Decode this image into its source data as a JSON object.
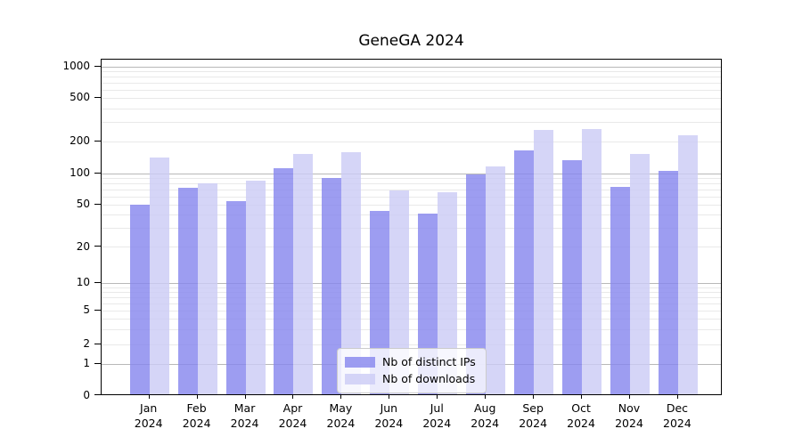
{
  "chart_data": {
    "type": "bar",
    "title": "GeneGA 2024",
    "categories": [
      "Jan",
      "Feb",
      "Mar",
      "Apr",
      "May",
      "Jun",
      "Jul",
      "Aug",
      "Sep",
      "Oct",
      "Nov",
      "Dec"
    ],
    "category_year": "2024",
    "series": [
      {
        "name": "Nb of distinct IPs",
        "color": "#8888ee",
        "values": [
          48,
          70,
          52,
          108,
          88,
          42,
          40,
          94,
          160,
          130,
          72,
          103
        ]
      },
      {
        "name": "Nb of downloads",
        "color": "#ccccf5",
        "values": [
          138,
          78,
          83,
          147,
          154,
          67,
          64,
          114,
          245,
          250,
          148,
          220
        ]
      }
    ],
    "yscale": "symlog",
    "yticks": [
      0,
      1,
      2,
      5,
      10,
      20,
      50,
      100,
      200,
      500,
      1000
    ],
    "minor_gridlines": [
      2,
      3,
      4,
      5,
      6,
      7,
      8,
      9,
      20,
      30,
      40,
      50,
      60,
      70,
      80,
      90,
      200,
      300,
      400,
      500,
      600,
      700,
      800,
      900
    ],
    "major_gridlines": [
      1,
      10,
      100,
      1000
    ],
    "ylim": [
      0,
      1166
    ],
    "grid": "both",
    "legend_position": "lower center",
    "colors": {
      "major_grid": "#b8b8b8",
      "minor_grid": "#e9e9e9",
      "spine": "#000000"
    }
  }
}
